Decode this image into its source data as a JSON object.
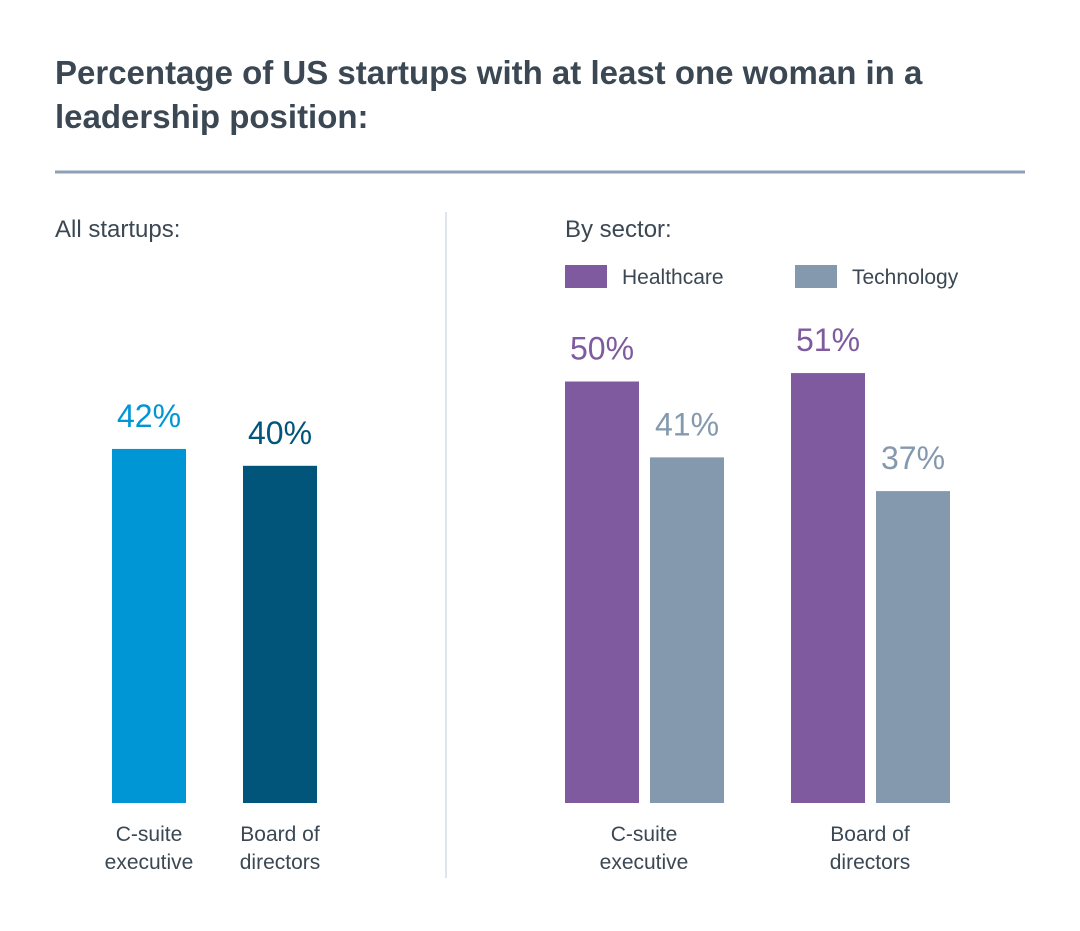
{
  "title": "Percentage of US startups with at least one woman in a leadership position:",
  "chart_data": [
    {
      "type": "bar",
      "title": "All startups:",
      "categories": [
        "C-suite executive",
        "Board of directors"
      ],
      "values": [
        42,
        40
      ],
      "value_labels": [
        "42%",
        "40%"
      ],
      "colors": [
        "#0096D6",
        "#02557A"
      ],
      "ylim": [
        0,
        100
      ],
      "grid": false
    },
    {
      "type": "bar",
      "title": "By sector:",
      "categories": [
        "C-suite executive",
        "Board of directors"
      ],
      "series": [
        {
          "name": "Healthcare",
          "values": [
            50,
            51
          ],
          "value_labels": [
            "50%",
            "51%"
          ],
          "color": "#7F5A9F"
        },
        {
          "name": "Technology",
          "values": [
            41,
            37
          ],
          "value_labels": [
            "41%",
            "37%"
          ],
          "color": "#8599AE"
        }
      ],
      "legend": "top-left",
      "ylim": [
        0,
        100
      ],
      "grid": false
    }
  ]
}
